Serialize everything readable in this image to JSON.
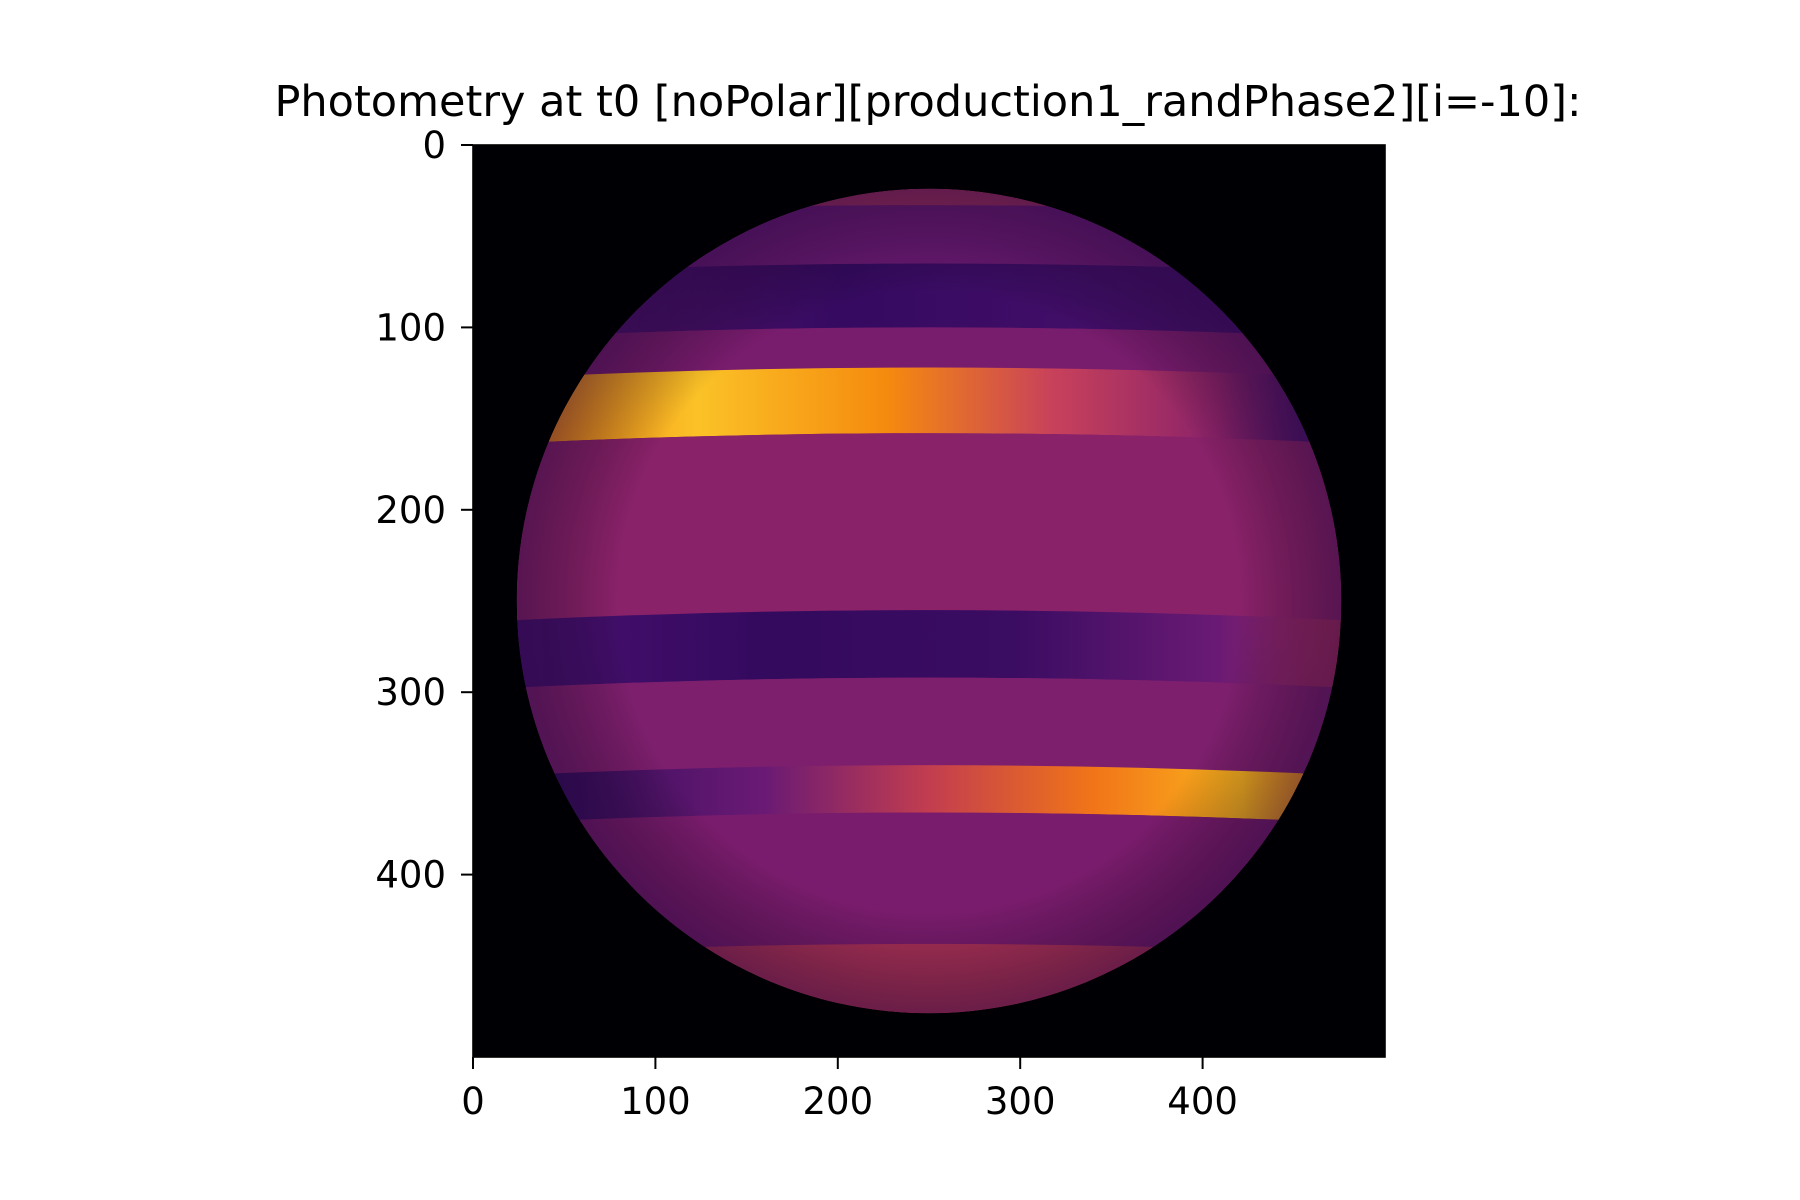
{
  "chart_data": {
    "type": "heatmap",
    "title": "Photometry at t0 [noPolar][production1_randPhase2][i=-10]:",
    "xlabel": "",
    "ylabel": "",
    "colormap": "inferno",
    "image_extent": {
      "x": [
        0,
        500
      ],
      "y": [
        500,
        0
      ]
    },
    "y_axis_inverted": true,
    "xlim": [
      0,
      500
    ],
    "ylim": [
      500,
      0
    ],
    "x_ticks": [
      0,
      100,
      200,
      300,
      400
    ],
    "y_ticks": [
      0,
      100,
      200,
      300,
      400
    ],
    "grid": false,
    "legend": "none",
    "disk": {
      "center_x": 250,
      "center_y": 250,
      "radius": 226
    },
    "background_color": "#000004",
    "bands": [
      {
        "y_top": 24,
        "y_bottom": 33,
        "color": "#9c2e60",
        "fade": "none"
      },
      {
        "y_top": 33,
        "y_bottom": 65,
        "color": "#6b1a74",
        "fade": "none"
      },
      {
        "y_top": 65,
        "y_bottom": 100,
        "color": "#330a5e",
        "fade": "right-to-purple"
      },
      {
        "y_top": 100,
        "y_bottom": 122,
        "color": "#781c6d",
        "fade": "none"
      },
      {
        "y_top": 122,
        "y_bottom": 158,
        "color": "#fbb41d",
        "fade": "left-bright"
      },
      {
        "y_top": 158,
        "y_bottom": 255,
        "color": "#8a226a",
        "fade": "none"
      },
      {
        "y_top": 255,
        "y_bottom": 292,
        "color": "#330a5e",
        "fade": "right-to-red"
      },
      {
        "y_top": 292,
        "y_bottom": 340,
        "color": "#7e1f6e",
        "fade": "none"
      },
      {
        "y_top": 340,
        "y_bottom": 366,
        "color": "#fbb41d",
        "fade": "right-bright"
      },
      {
        "y_top": 366,
        "y_bottom": 438,
        "color": "#7a1c6d",
        "fade": "none"
      },
      {
        "y_top": 438,
        "y_bottom": 476,
        "color": "#ad3259",
        "fade": "none"
      }
    ]
  }
}
